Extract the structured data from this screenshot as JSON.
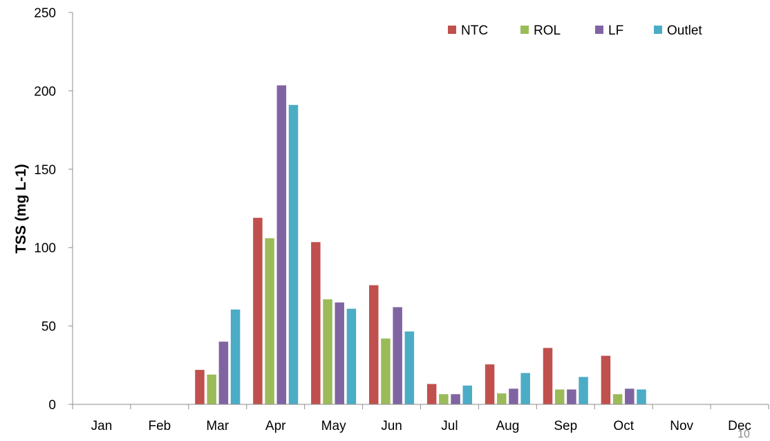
{
  "chart_data": {
    "type": "bar",
    "title": "",
    "xlabel": "",
    "ylabel": "TSS (mg L-1)",
    "ylim": [
      0,
      250
    ],
    "yticks": [
      0,
      50,
      100,
      150,
      200,
      250
    ],
    "grid": false,
    "legend_position": "top-right",
    "categories": [
      "Jan",
      "Feb",
      "Mar",
      "Apr",
      "May",
      "Jun",
      "Jul",
      "Aug",
      "Sep",
      "Oct",
      "Nov",
      "Dec"
    ],
    "series": [
      {
        "name": "NTC",
        "color": "#c0504d",
        "values": [
          null,
          null,
          22,
          119,
          103.5,
          76,
          13,
          25.5,
          36,
          31,
          null,
          null
        ]
      },
      {
        "name": "ROL",
        "color": "#9bbb59",
        "values": [
          null,
          null,
          19,
          106,
          67,
          42,
          6.5,
          7,
          9.5,
          6.5,
          null,
          null
        ]
      },
      {
        "name": "LF",
        "color": "#8064a2",
        "values": [
          null,
          null,
          40,
          203.5,
          65,
          62,
          6.5,
          10,
          9.5,
          10,
          null,
          null
        ]
      },
      {
        "name": "Outlet",
        "color": "#4bacc6",
        "values": [
          null,
          null,
          60.5,
          191,
          61,
          46.5,
          12,
          20,
          17.5,
          9.5,
          null,
          null
        ]
      }
    ]
  },
  "page_number": "10"
}
